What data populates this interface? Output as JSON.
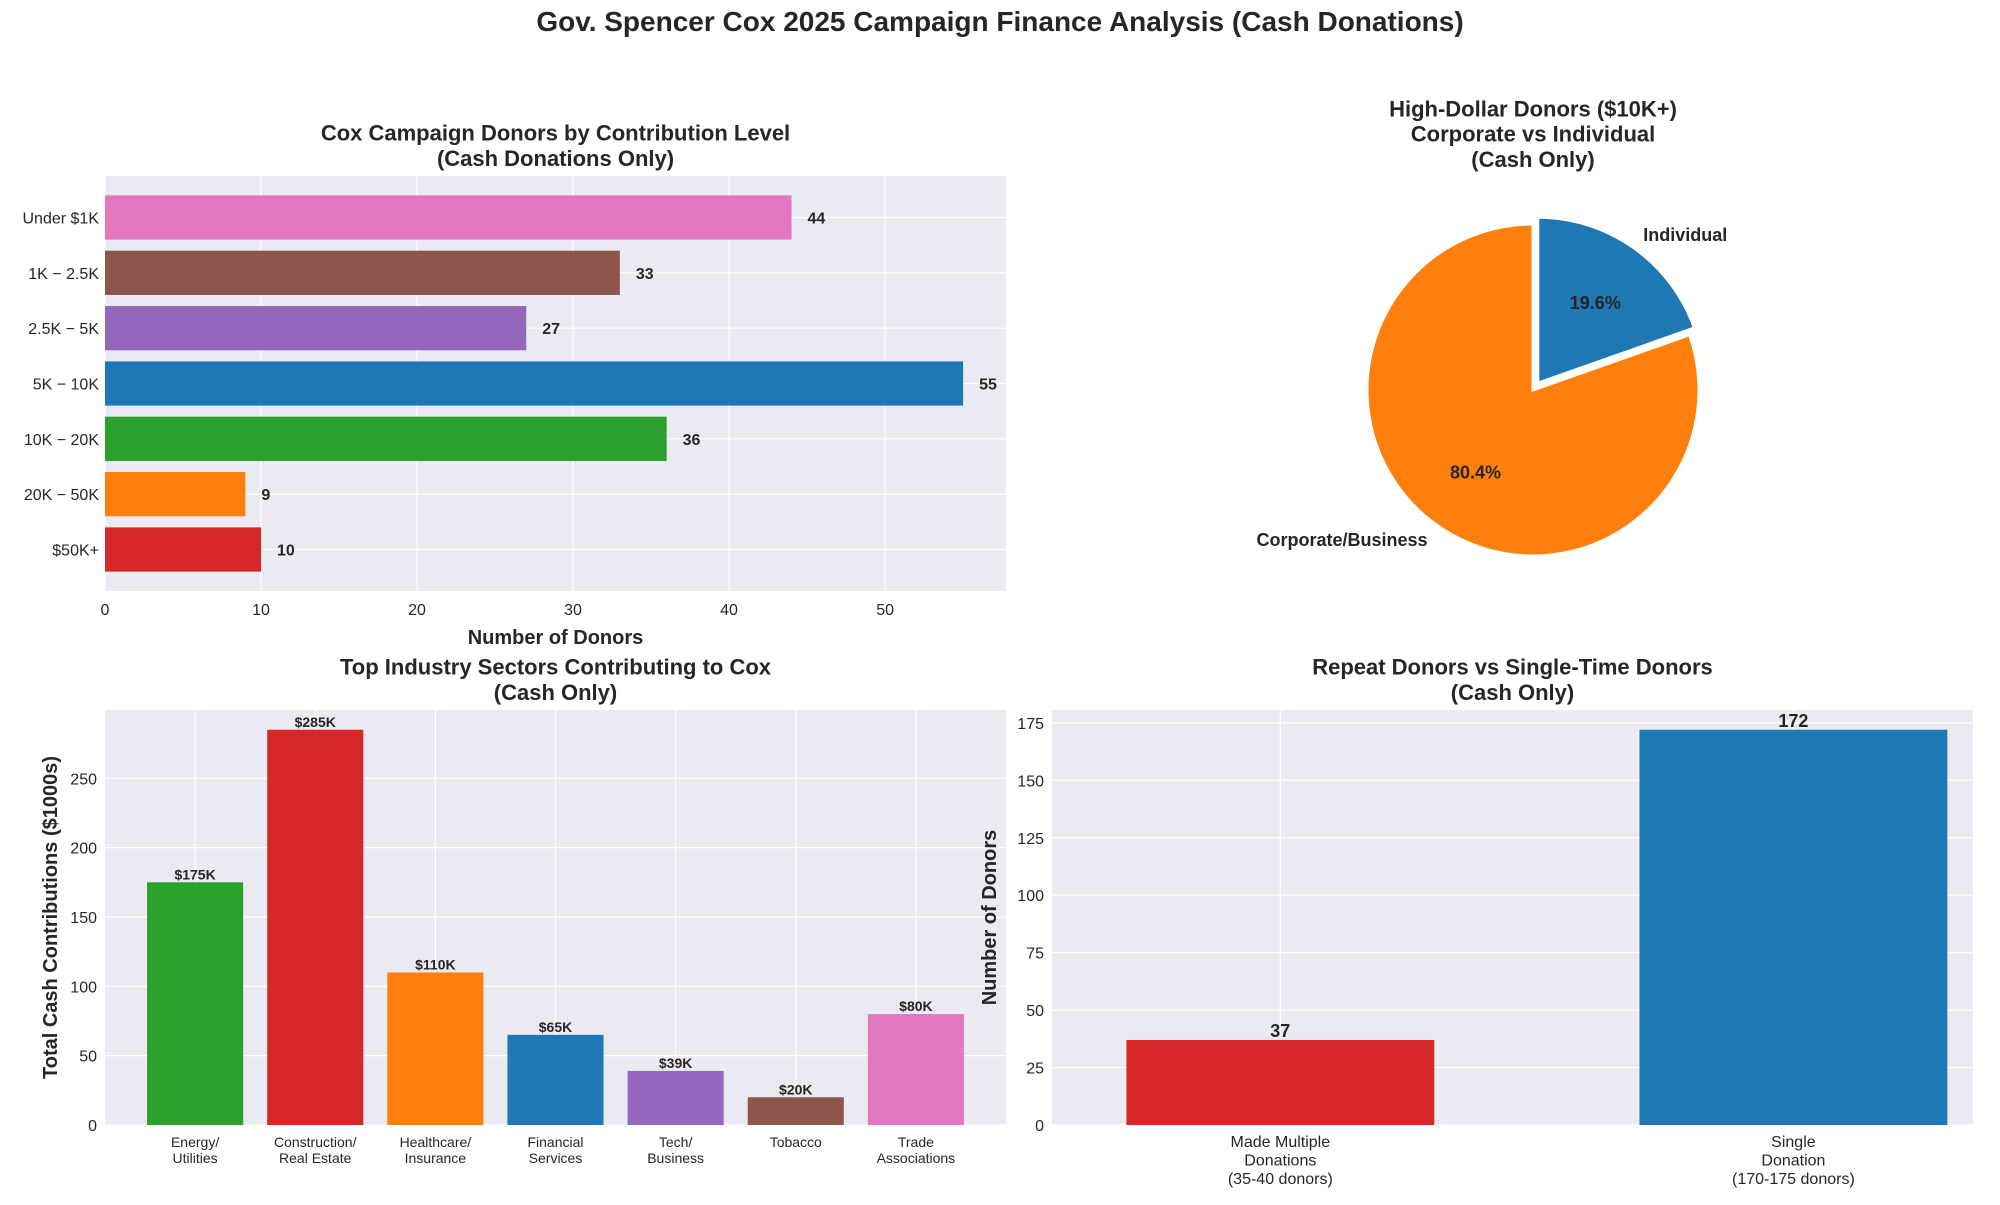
{
  "title": "Gov. Spencer Cox 2025 Campaign Finance Analysis (Cash Donations)",
  "colors": {
    "background": "#eaeaf2",
    "grid": "#ffffff"
  },
  "chart_data": [
    {
      "type": "bar",
      "orientation": "horizontal",
      "title": "Cox Campaign Donors by Contribution Level\n(Cash Donations Only)",
      "xlabel": "Number of Donors",
      "ylabel": "",
      "categories": [
        "Under $1K",
        "1K − 2.5K",
        "2.5K − 5K",
        "5K − 10K",
        "10K − 20K",
        "20K − 50K",
        "$50K+"
      ],
      "values": [
        44,
        33,
        27,
        55,
        36,
        9,
        10
      ],
      "data_labels": [
        "44",
        "33",
        "27",
        "55",
        "36",
        "9",
        "10"
      ],
      "colors": [
        "#e377c2",
        "#8c564b",
        "#9467bd",
        "#1f77b4",
        "#2ca02c",
        "#ff7f0e",
        "#d62728"
      ],
      "xlim": [
        0,
        57.75
      ],
      "xticks": [
        "0",
        "10",
        "20",
        "30",
        "40",
        "50"
      ],
      "grid": true
    },
    {
      "type": "pie",
      "title": "High-Dollar Donors ($10K+)\nCorporate vs Individual\n(Cash Only)",
      "labels": [
        "Individual",
        "Corporate/Business"
      ],
      "values": [
        19.6,
        80.4
      ],
      "pct_labels": [
        "19.6%",
        "80.4%"
      ],
      "colors": [
        "#1f77b4",
        "#ff7f0e"
      ],
      "exploded": [
        "Individual"
      ]
    },
    {
      "type": "bar",
      "title": "Top Industry Sectors Contributing to Cox\n(Cash Only)",
      "xlabel": "",
      "ylabel": "Total Cash Contributions ($1000s)",
      "categories": [
        "Energy/\nUtilities",
        "Construction/\nReal Estate",
        "Healthcare/\nInsurance",
        "Financial\nServices",
        "Tech/\nBusiness",
        "Tobacco",
        "Trade\nAssociations"
      ],
      "values": [
        175,
        285,
        110,
        65,
        39,
        20,
        80
      ],
      "data_labels": [
        "$175K",
        "$285K",
        "$110K",
        "$65K",
        "$39K",
        "$20K",
        "$80K"
      ],
      "colors": [
        "#2ca02c",
        "#d62728",
        "#ff7f0e",
        "#1f77b4",
        "#9467bd",
        "#8c564b",
        "#e377c2"
      ],
      "ylim": [
        0,
        299.25
      ],
      "yticks": [
        "0",
        "50",
        "100",
        "150",
        "200",
        "250"
      ],
      "grid": true
    },
    {
      "type": "bar",
      "title": "Repeat Donors vs Single-Time Donors\n(Cash Only)",
      "xlabel": "",
      "ylabel": "Number of Donors",
      "categories": [
        "Made Multiple\nDonations\n(35-40 donors)",
        "Single\nDonation\n(170-175 donors)"
      ],
      "values": [
        37,
        172
      ],
      "data_labels": [
        "37",
        "172"
      ],
      "colors": [
        "#d62728",
        "#1f77b4"
      ],
      "ylim": [
        0,
        180.6
      ],
      "yticks": [
        "0",
        "25",
        "50",
        "75",
        "100",
        "125",
        "150",
        "175"
      ],
      "grid": true
    }
  ]
}
